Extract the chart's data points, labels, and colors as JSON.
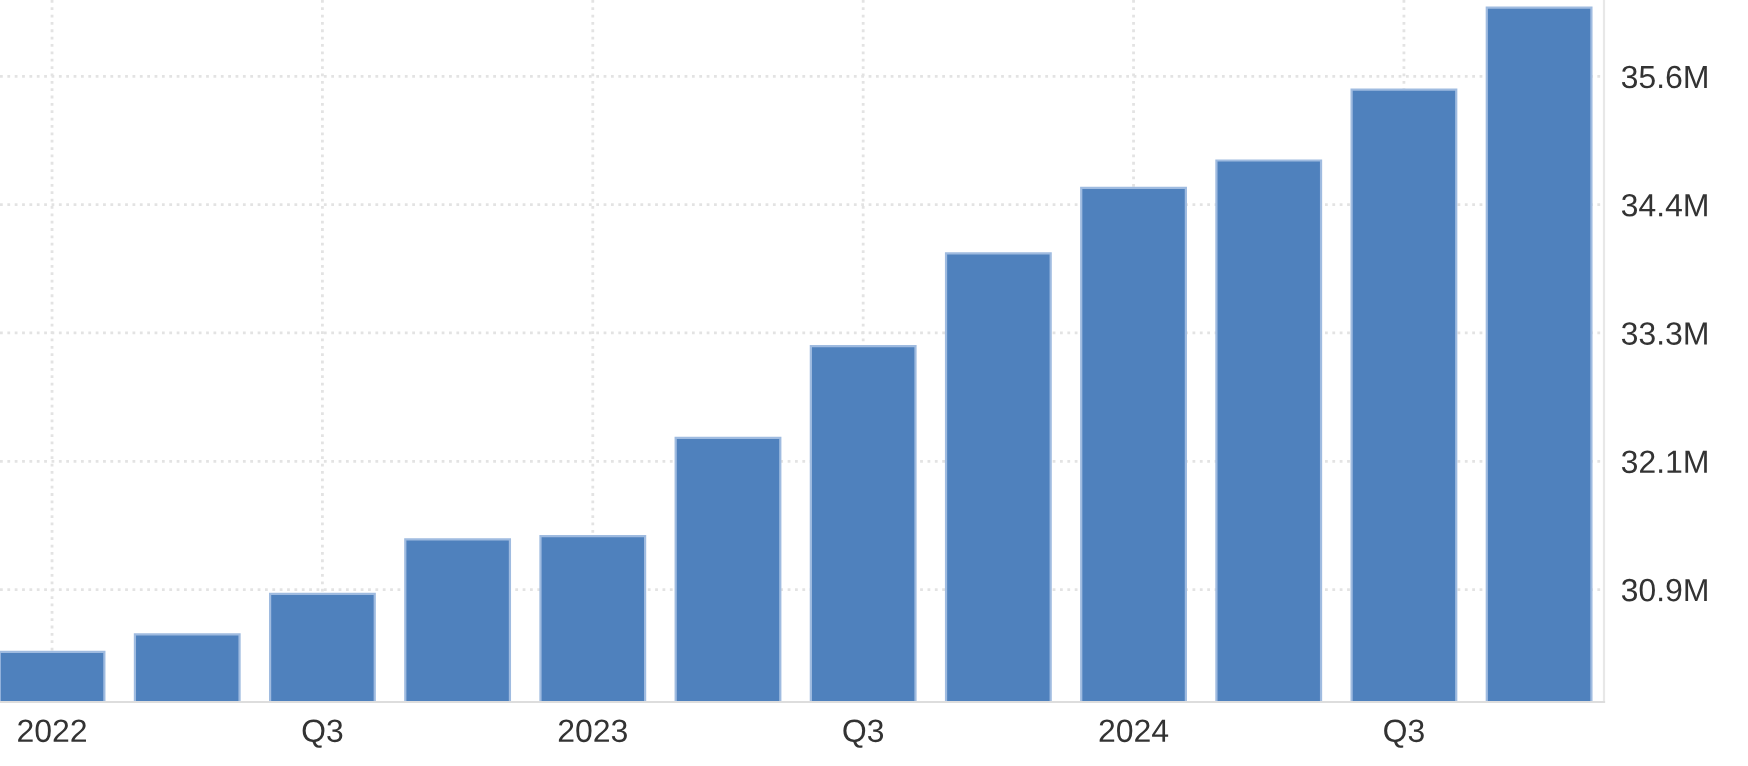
{
  "chart_data": {
    "type": "bar",
    "categories": [
      "2022",
      null,
      "Q3",
      null,
      "2023",
      null,
      "Q3",
      null,
      "2024",
      null,
      "Q3",
      null
    ],
    "values": [
      30.33,
      30.49,
      30.86,
      31.36,
      31.39,
      32.29,
      33.13,
      33.98,
      34.58,
      34.83,
      35.48,
      36.23
    ],
    "color": "#4f81bd",
    "ylim": [
      29.87,
      36.3
    ],
    "yticks": [
      {
        "value": 30.9,
        "label": "30.9M"
      },
      {
        "value": 32.075,
        "label": "32.1M"
      },
      {
        "value": 33.25,
        "label": "33.3M"
      },
      {
        "value": 34.425,
        "label": "34.4M"
      },
      {
        "value": 35.6,
        "label": "35.6M"
      }
    ],
    "grid": true,
    "legend": false
  }
}
